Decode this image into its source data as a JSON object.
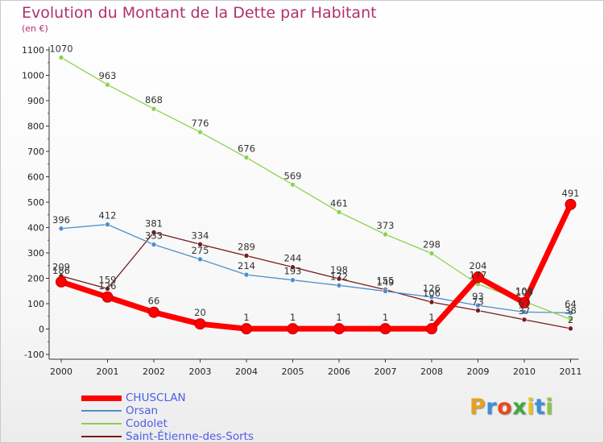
{
  "chart_data": {
    "type": "line",
    "title": "Evolution du Montant de la Dette par Habitant",
    "ylabel": "(en €)",
    "x": [
      "2000",
      "2001",
      "2002",
      "2003",
      "2004",
      "2005",
      "2006",
      "2007",
      "2008",
      "2009",
      "2010",
      "2011"
    ],
    "ylim": [
      -100,
      1100
    ],
    "yticks": [
      -100,
      0,
      100,
      200,
      300,
      400,
      500,
      600,
      700,
      800,
      900,
      1000,
      1100
    ],
    "grid": false,
    "legend_placement": "bottom-left",
    "series": [
      {
        "name": "Saint-Étienne-des-Sorts",
        "color": "#7a1a1a",
        "width": 1.3,
        "values": [
          209,
          159,
          381,
          334,
          289,
          244,
          198,
          155,
          106,
          73,
          37,
          2
        ]
      },
      {
        "name": "Orsan",
        "color": "#4f8fc9",
        "width": 1.3,
        "values": [
          396,
          412,
          333,
          275,
          214,
          193,
          172,
          149,
          126,
          93,
          67,
          64
        ]
      },
      {
        "name": "Codolet",
        "color": "#8dd24e",
        "width": 1.3,
        "values": [
          1070,
          963,
          868,
          776,
          676,
          569,
          461,
          373,
          298,
          177,
          109,
          38
        ]
      },
      {
        "name": "CHUSCLAN",
        "color": "#ff0000",
        "width": 7,
        "values": [
          186,
          126,
          66,
          20,
          1,
          1,
          1,
          1,
          1,
          204,
          104,
          491
        ]
      }
    ],
    "legend_order": [
      "CHUSCLAN",
      "Orsan",
      "Codolet",
      "Saint-Étienne-des-Sorts"
    ]
  },
  "logo": {
    "letters": [
      "P",
      "r",
      "o",
      "x",
      "i",
      "t",
      "i"
    ],
    "colors": [
      "#e8a020",
      "#3b8fd9",
      "#e84a20",
      "#3fa83f",
      "#e8c020",
      "#3b8fd9",
      "#8bc53f"
    ]
  }
}
